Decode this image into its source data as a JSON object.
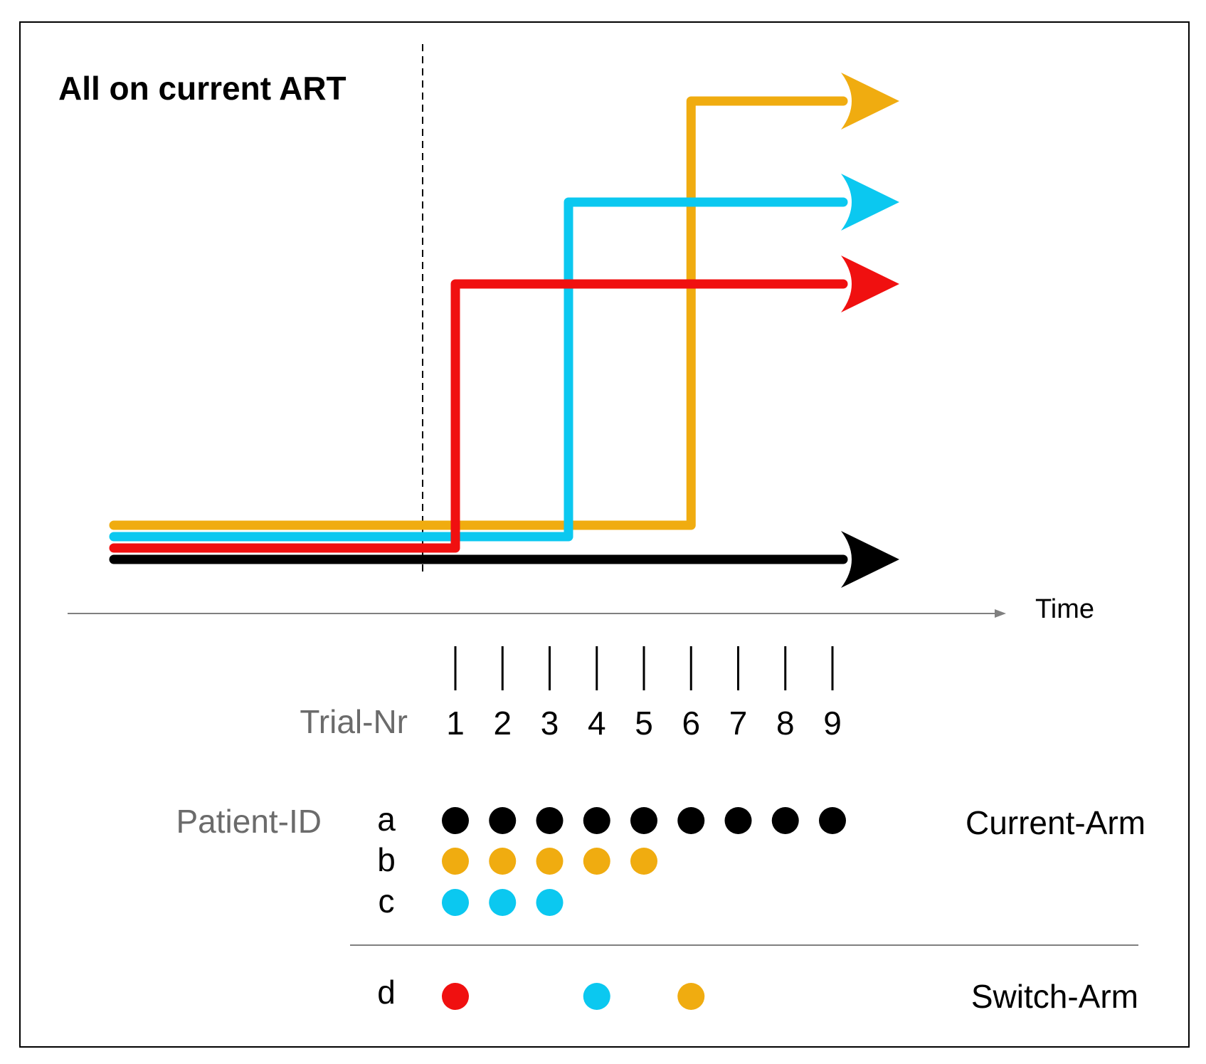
{
  "title": "All on current ART",
  "time_label": "Time",
  "trial_label": "Trial-Nr",
  "trial_numbers": [
    "1",
    "2",
    "3",
    "4",
    "5",
    "6",
    "7",
    "8",
    "9"
  ],
  "patient_label": "Patient-ID",
  "colors": {
    "black": "#000000",
    "orange": "#F0AC10",
    "cyan": "#0BC8F0",
    "red": "#F01010",
    "gray_text": "#6b6b6b",
    "axis_gray": "#808080"
  },
  "pathways": [
    {
      "id": "a",
      "color": "black",
      "switch_at_trial": null
    },
    {
      "id": "d-red",
      "color": "red",
      "switch_at_trial": 1
    },
    {
      "id": "d-cyan",
      "color": "cyan",
      "switch_at_trial": 3.4
    },
    {
      "id": "d-orange",
      "color": "orange",
      "switch_at_trial": 6
    }
  ],
  "current_arm": {
    "label": "Current-Arm",
    "patients": [
      {
        "id": "a",
        "color": "black",
        "trials": [
          1,
          2,
          3,
          4,
          5,
          6,
          7,
          8,
          9
        ]
      },
      {
        "id": "b",
        "color": "orange",
        "trials": [
          1,
          2,
          3,
          4,
          5
        ]
      },
      {
        "id": "c",
        "color": "cyan",
        "trials": [
          1,
          2,
          3
        ]
      }
    ]
  },
  "switch_arm": {
    "label": "Switch-Arm",
    "patients": [
      {
        "id": "d",
        "dots": [
          {
            "trial": 1,
            "color": "red"
          },
          {
            "trial": 4,
            "color": "cyan"
          },
          {
            "trial": 6,
            "color": "orange"
          }
        ]
      }
    ]
  }
}
